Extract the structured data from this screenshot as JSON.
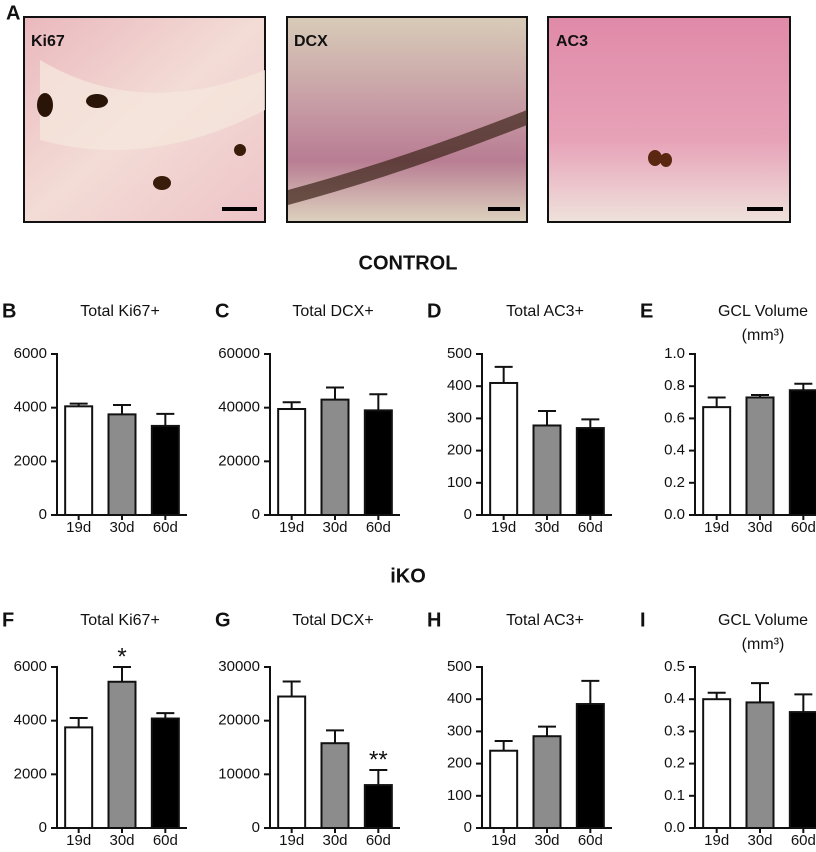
{
  "figure_label": "A",
  "images": [
    {
      "label": "Ki67"
    },
    {
      "label": "DCX"
    },
    {
      "label": "AC3"
    }
  ],
  "section_titles": [
    "CONTROL",
    "iKO"
  ],
  "chart_data": [
    {
      "type": "bar",
      "panel": "B",
      "title": "Total Ki67+",
      "categories": [
        "19d",
        "30d",
        "60d"
      ],
      "values": [
        4050,
        3750,
        3320
      ],
      "errors": [
        100,
        350,
        450
      ],
      "colors": [
        "#ffffff",
        "#8c8c8c",
        "#000000"
      ],
      "ylim": [
        0,
        6000
      ],
      "yticks": [
        0,
        2000,
        4000,
        6000
      ]
    },
    {
      "type": "bar",
      "panel": "C",
      "title": "Total DCX+",
      "categories": [
        "19d",
        "30d",
        "60d"
      ],
      "values": [
        39500,
        43000,
        39000
      ],
      "errors": [
        2500,
        4500,
        6000
      ],
      "colors": [
        "#ffffff",
        "#8c8c8c",
        "#000000"
      ],
      "ylim": [
        0,
        60000
      ],
      "yticks": [
        0,
        20000,
        40000,
        60000
      ]
    },
    {
      "type": "bar",
      "panel": "D",
      "title": "Total AC3+",
      "categories": [
        "19d",
        "30d",
        "60d"
      ],
      "values": [
        410,
        278,
        270
      ],
      "errors": [
        50,
        45,
        27
      ],
      "colors": [
        "#ffffff",
        "#8c8c8c",
        "#000000"
      ],
      "ylim": [
        0,
        500
      ],
      "yticks": [
        0,
        100,
        200,
        300,
        400,
        500
      ]
    },
    {
      "type": "bar",
      "panel": "E",
      "title_lines": [
        "GCL Volume",
        "(mm³)"
      ],
      "categories": [
        "19d",
        "30d",
        "60d"
      ],
      "values": [
        0.67,
        0.73,
        0.775
      ],
      "errors": [
        0.06,
        0.015,
        0.04
      ],
      "colors": [
        "#ffffff",
        "#8c8c8c",
        "#000000"
      ],
      "ylim": [
        0,
        1
      ],
      "yticks": [
        {
          "value": 0,
          "label": "0.0"
        },
        0.2,
        0.4,
        0.6,
        0.8,
        {
          "value": 1,
          "label": "1.0"
        }
      ]
    },
    {
      "type": "bar",
      "panel": "F",
      "title": "Total Ki67+",
      "categories": [
        "19d",
        "30d",
        "60d"
      ],
      "values": [
        3750,
        5450,
        4080
      ],
      "errors": [
        350,
        550,
        200
      ],
      "colors": [
        "#ffffff",
        "#8c8c8c",
        "#000000"
      ],
      "annotations": [
        null,
        "*",
        null
      ],
      "ylim": [
        0,
        6000
      ],
      "yticks": [
        0,
        2000,
        4000,
        6000
      ]
    },
    {
      "type": "bar",
      "panel": "G",
      "title": "Total DCX+",
      "categories": [
        "19d",
        "30d",
        "60d"
      ],
      "values": [
        24500,
        15800,
        8000
      ],
      "errors": [
        2800,
        2400,
        2800
      ],
      "colors": [
        "#ffffff",
        "#8c8c8c",
        "#000000"
      ],
      "annotations": [
        null,
        null,
        "**"
      ],
      "ylim": [
        0,
        30000
      ],
      "yticks": [
        0,
        10000,
        20000,
        30000
      ]
    },
    {
      "type": "bar",
      "panel": "H",
      "title": "Total AC3+",
      "categories": [
        "19d",
        "30d",
        "60d"
      ],
      "values": [
        240,
        285,
        385
      ],
      "errors": [
        30,
        30,
        72
      ],
      "colors": [
        "#ffffff",
        "#8c8c8c",
        "#000000"
      ],
      "ylim": [
        0,
        500
      ],
      "yticks": [
        0,
        100,
        200,
        300,
        400,
        500
      ]
    },
    {
      "type": "bar",
      "panel": "I",
      "title_lines": [
        "GCL Volume",
        "(mm³)"
      ],
      "categories": [
        "19d",
        "30d",
        "60d"
      ],
      "values": [
        0.4,
        0.39,
        0.36
      ],
      "errors": [
        0.02,
        0.06,
        0.055
      ],
      "colors": [
        "#ffffff",
        "#8c8c8c",
        "#000000"
      ],
      "ylim": [
        0,
        0.5
      ],
      "yticks": [
        {
          "value": 0,
          "label": "0.0"
        },
        0.1,
        0.2,
        0.3,
        0.4,
        0.5
      ]
    }
  ]
}
